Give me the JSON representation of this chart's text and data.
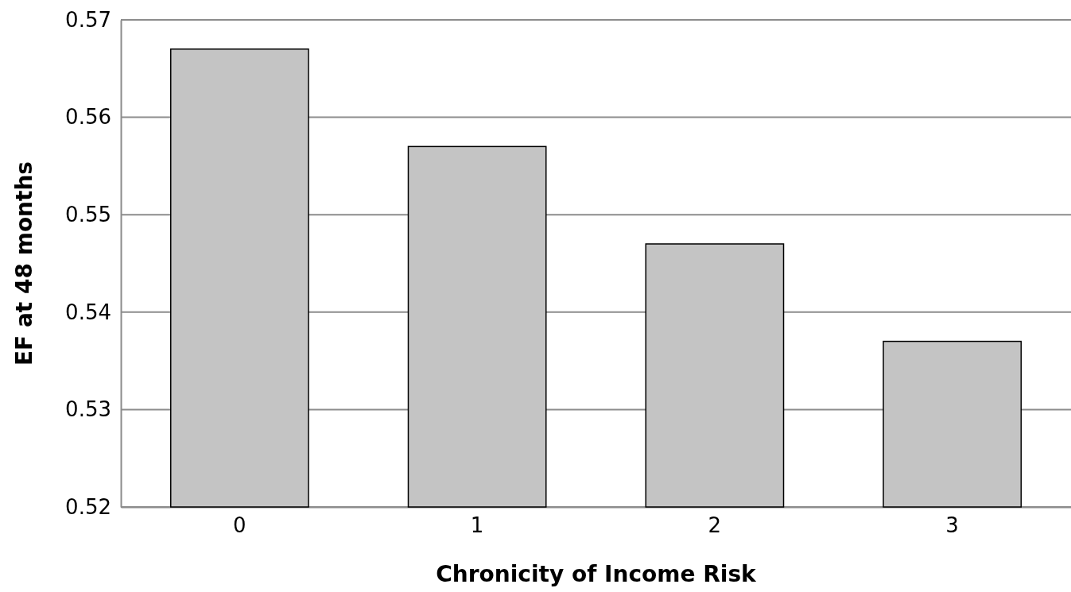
{
  "chart_data": {
    "type": "bar",
    "xlabel": "Chronicity of Income Risk",
    "ylabel": "EF at 48 months",
    "categories": [
      "0",
      "1",
      "2",
      "3"
    ],
    "values": [
      0.567,
      0.557,
      0.547,
      0.537
    ],
    "color": "#c4c4c4",
    "ylim": [
      0.52,
      0.57
    ],
    "yticks": [
      0.52,
      0.53,
      0.54,
      0.55,
      0.56,
      0.57
    ],
    "grid": "y"
  }
}
